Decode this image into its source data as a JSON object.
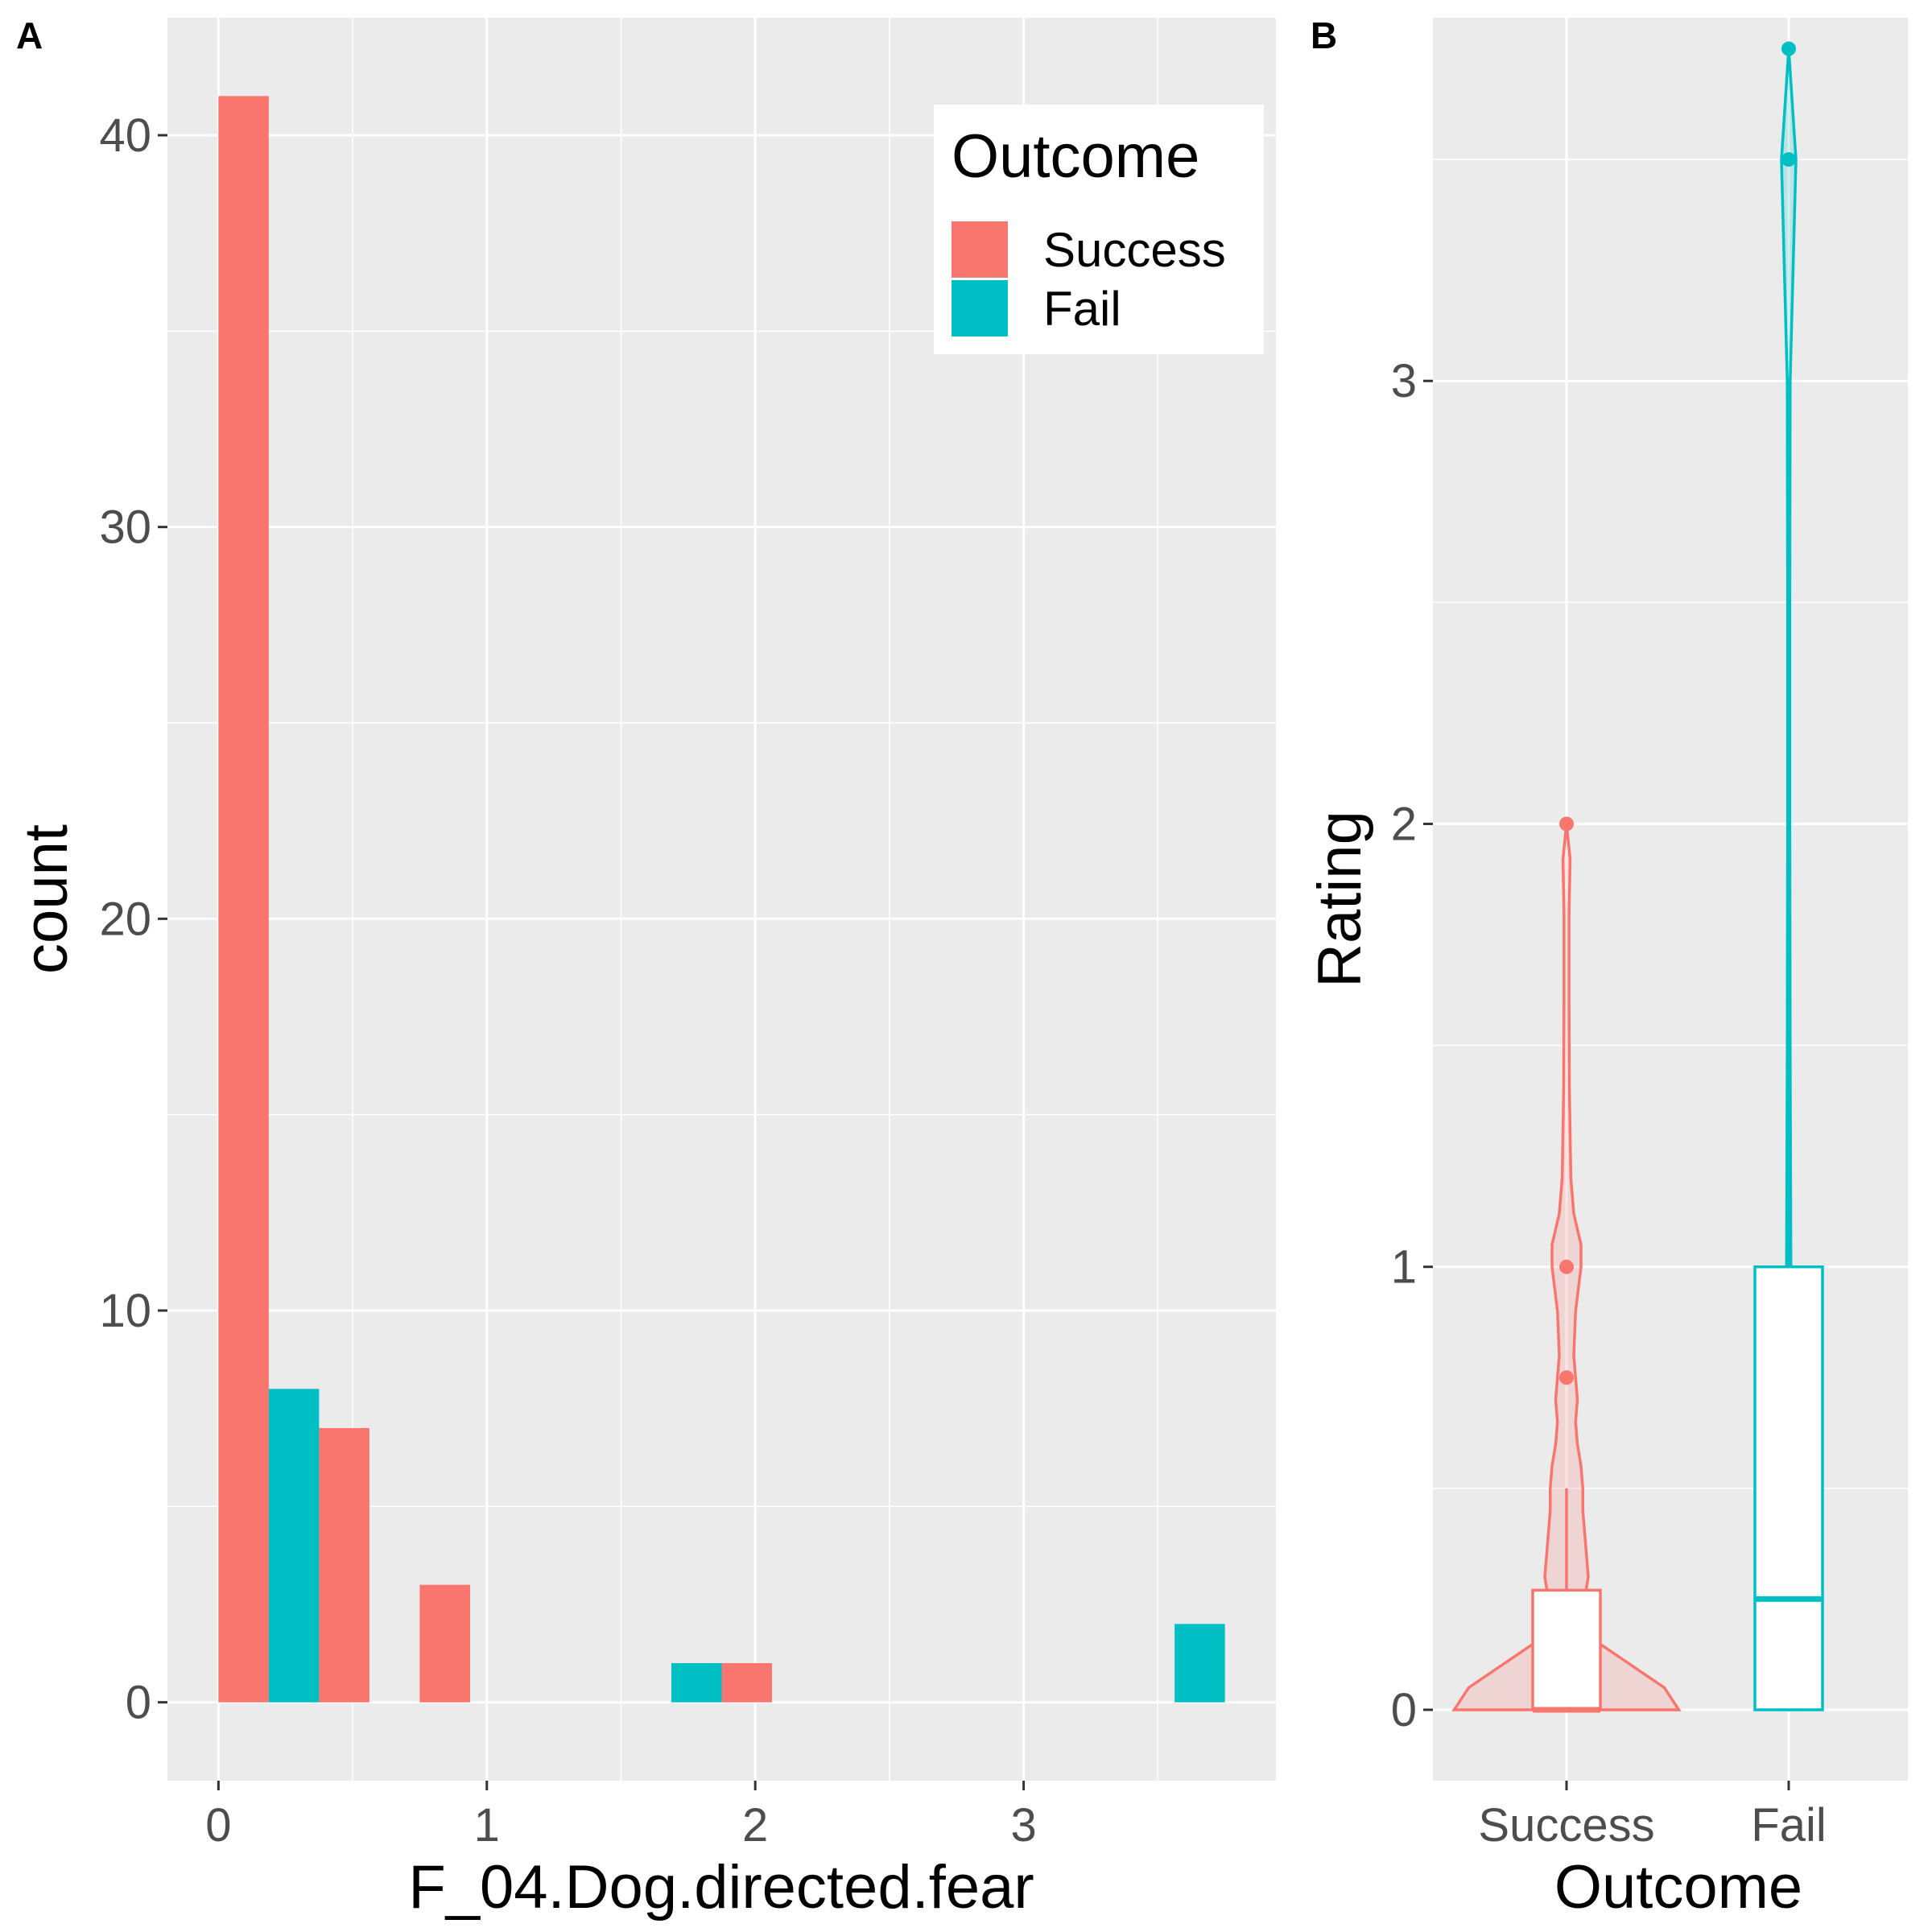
{
  "panels": {
    "a_label": "A",
    "b_label": "B"
  },
  "chart_data": [
    {
      "type": "bar",
      "panel": "A",
      "title": "",
      "xlabel": "F_04.Dog.directed.fear",
      "ylabel": "count",
      "xlim": [
        -0.19,
        3.94
      ],
      "ylim": [
        -2.0,
        43.0
      ],
      "xticks": [
        0,
        1,
        2,
        3
      ],
      "yticks": [
        0,
        10,
        20,
        30,
        40
      ],
      "grid": true,
      "legend": {
        "title": "Outcome",
        "position": "top-right",
        "entries": [
          {
            "label": "Success",
            "color": "#F8766D"
          },
          {
            "label": "Fail",
            "color": "#00BFC4"
          }
        ]
      },
      "bars": [
        {
          "x0": 0.0,
          "x1": 0.1875,
          "count": 41,
          "group": "Success"
        },
        {
          "x0": 0.1875,
          "x1": 0.375,
          "count": 8,
          "group": "Fail"
        },
        {
          "x0": 0.375,
          "x1": 0.5625,
          "count": 7,
          "group": "Success"
        },
        {
          "x0": 0.75,
          "x1": 0.9375,
          "count": 3,
          "group": "Success"
        },
        {
          "x0": 1.6875,
          "x1": 1.875,
          "count": 1,
          "group": "Fail"
        },
        {
          "x0": 1.875,
          "x1": 2.0625,
          "count": 1,
          "group": "Success"
        },
        {
          "x0": 3.5625,
          "x1": 3.75,
          "count": 2,
          "group": "Fail"
        }
      ]
    },
    {
      "type": "violin",
      "panel": "B",
      "title": "",
      "xlabel": "Outcome",
      "ylabel": "Rating",
      "categories": [
        "Success",
        "Fail"
      ],
      "ylim": [
        -0.16,
        3.82
      ],
      "yticks": [
        0,
        1,
        2,
        3
      ],
      "grid": true,
      "series": [
        {
          "name": "Success",
          "color": "#F8766D",
          "box": {
            "min": 0.0,
            "q1": 0.0,
            "median": 0.0,
            "q3": 0.27,
            "whisker_high": 0.5
          },
          "outliers": [
            0.75,
            1.0,
            2.0
          ],
          "density": [
            {
              "y": 0.0,
              "w": 0.31
            },
            {
              "y": 0.05,
              "w": 0.27
            },
            {
              "y": 0.1,
              "w": 0.18
            },
            {
              "y": 0.15,
              "w": 0.09
            },
            {
              "y": 0.2,
              "w": 0.06
            },
            {
              "y": 0.25,
              "w": 0.05
            },
            {
              "y": 0.3,
              "w": 0.06
            },
            {
              "y": 0.35,
              "w": 0.055
            },
            {
              "y": 0.4,
              "w": 0.05
            },
            {
              "y": 0.45,
              "w": 0.045
            },
            {
              "y": 0.5,
              "w": 0.045
            },
            {
              "y": 0.55,
              "w": 0.04
            },
            {
              "y": 0.6,
              "w": 0.03
            },
            {
              "y": 0.65,
              "w": 0.025
            },
            {
              "y": 0.7,
              "w": 0.03
            },
            {
              "y": 0.8,
              "w": 0.02
            },
            {
              "y": 0.9,
              "w": 0.025
            },
            {
              "y": 1.0,
              "w": 0.04
            },
            {
              "y": 1.05,
              "w": 0.04
            },
            {
              "y": 1.12,
              "w": 0.02
            },
            {
              "y": 1.2,
              "w": 0.012
            },
            {
              "y": 1.4,
              "w": 0.008
            },
            {
              "y": 1.6,
              "w": 0.007
            },
            {
              "y": 1.8,
              "w": 0.007
            },
            {
              "y": 1.92,
              "w": 0.01
            },
            {
              "y": 2.0,
              "w": 0.0
            }
          ]
        },
        {
          "name": "Fail",
          "color": "#00BFC4",
          "box": {
            "min": 0.0,
            "q1": 0.0,
            "median": 0.25,
            "q3": 1.0,
            "whisker_high": 1.75
          },
          "outliers": [
            3.5,
            3.75
          ],
          "density": [
            {
              "y": 0.0,
              "w": 0.005
            },
            {
              "y": 0.5,
              "w": 0.005
            },
            {
              "y": 1.0,
              "w": 0.006
            },
            {
              "y": 1.5,
              "w": 0.004
            },
            {
              "y": 2.0,
              "w": 0.003
            },
            {
              "y": 2.5,
              "w": 0.003
            },
            {
              "y": 3.0,
              "w": 0.004
            },
            {
              "y": 3.5,
              "w": 0.02
            },
            {
              "y": 3.75,
              "w": 0.0
            }
          ]
        }
      ]
    }
  ]
}
